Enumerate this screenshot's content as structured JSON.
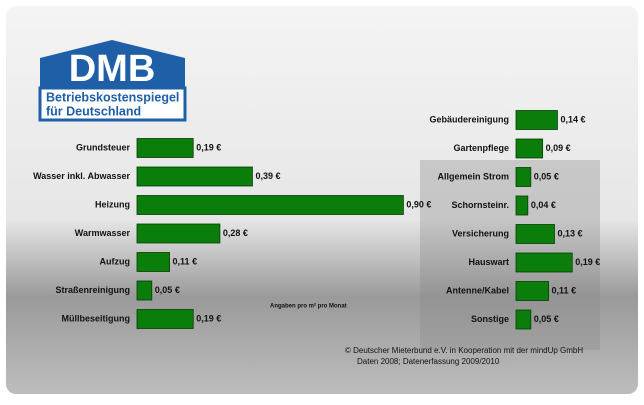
{
  "logo": {
    "title": "DMB",
    "lines": [
      "Betriebskostenspiegel",
      "für Deutschland"
    ]
  },
  "note": "Angaben pro m² pro Monat",
  "footer": [
    "© Deutscher Mieterbund e.V. in Kooperation mit der mindUp GmbH",
    "Daten 2008; Datenerfassung 2009/2010"
  ],
  "chart_data": [
    {
      "type": "bar",
      "orientation": "horizontal",
      "color": "#0b7d0b",
      "categories": [
        "Grundsteuer",
        "Wasser inkl. Abwasser",
        "Heizung",
        "Warmwasser",
        "Aufzug",
        "Straßenreinigung",
        "Müllbeseitigung"
      ],
      "values": [
        0.19,
        0.39,
        0.9,
        0.28,
        0.11,
        0.05,
        0.19
      ],
      "value_labels": [
        "0,19 €",
        "0,39 €",
        "0,90 €",
        "0,28 €",
        "0,11 €",
        "0,05 €",
        "0,19 €"
      ]
    },
    {
      "type": "bar",
      "orientation": "horizontal",
      "color": "#0b7d0b",
      "categories": [
        "Gebäudereinigung",
        "Gartenpflege",
        "Allgemein Strom",
        "Schornsteinr.",
        "Versicherung",
        "Hauswart",
        "Antenne/Kabel",
        "Sonstige"
      ],
      "values": [
        0.14,
        0.09,
        0.05,
        0.04,
        0.13,
        0.19,
        0.11,
        0.05
      ],
      "value_labels": [
        "0,14 €",
        "0,09 €",
        "0,05 €",
        "0,04 €",
        "0,13 €",
        "0,19 €",
        "0,11 €",
        "0,05 €"
      ]
    }
  ]
}
